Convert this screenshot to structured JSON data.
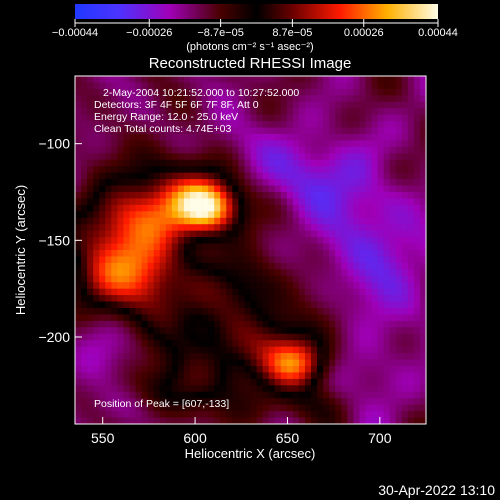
{
  "page": {
    "timestamp": "30-Apr-2022 13:10"
  },
  "chart_data": {
    "type": "heatmap",
    "title": "Reconstructed RHESSI Image",
    "xlabel": "Heliocentric X (arcsec)",
    "ylabel": "Heliocentric Y (arcsec)",
    "xlim": [
      535,
      725
    ],
    "ylim": [
      -245,
      -65
    ],
    "x_ticks": [
      550,
      600,
      650,
      700
    ],
    "y_ticks": [
      -100,
      -150,
      -200
    ],
    "colorbar": {
      "range": [
        -0.00044,
        0.00044
      ],
      "ticks": [
        -0.00044,
        -0.00026,
        -8.7e-05,
        8.7e-05,
        0.00026,
        0.00044
      ],
      "tick_labels": [
        "−0.00044",
        "−0.00026",
        "−8.7e−05",
        "8.7e−05",
        "0.00026",
        "0.00044"
      ],
      "units_label": "(photons cm⁻² s⁻¹ asec⁻²)"
    },
    "annotations": {
      "line1": "2-May-2004 10:21:52.000 to 10:27:52.000",
      "line2": "Detectors: 3F 4F 5F 6F 7F 8F, Att 0",
      "line3": "Energy Range: 12.0 - 25.0 keV",
      "line4": "Clean     Total counts: 4.74E+03",
      "peak": "Position of Peak = [607,-133]"
    },
    "peak": {
      "x": 607,
      "y": -133
    },
    "grid": false
  }
}
